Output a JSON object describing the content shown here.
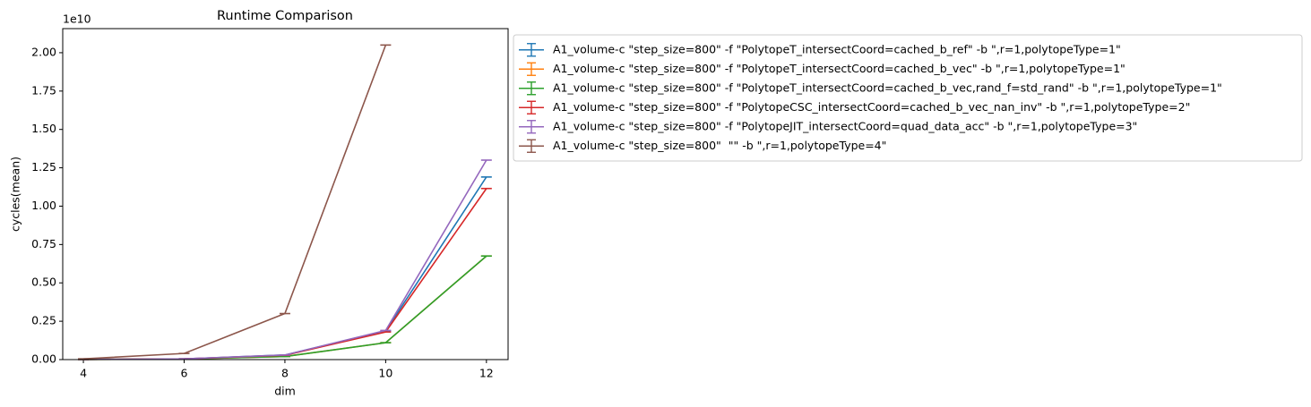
{
  "chart_data": {
    "type": "line",
    "title": "Runtime Comparison",
    "x_label": "dim",
    "y_label": "cycles(mean)",
    "y_offset_label": "1e10",
    "x": [
      4,
      6,
      8,
      10,
      12
    ],
    "series": [
      {
        "name": "A1_volume-c \"step_size=800\" -f \"PolytopeT_intersectCoord=cached_b_ref\" -b \",r=1,polytopeType=1\"",
        "color": "#1f77b4",
        "values": [
          0.001,
          0.005,
          0.03,
          0.187,
          1.19
        ]
      },
      {
        "name": "A1_volume-c \"step_size=800\" -f \"PolytopeT_intersectCoord=cached_b_vec\" -b \",r=1,polytopeType=1\"",
        "color": "#ff7f0e",
        "values": [
          0.001,
          0.004,
          0.02,
          0.11,
          0.675
        ]
      },
      {
        "name": "A1_volume-c \"step_size=800\" -f \"PolytopeT_intersectCoord=cached_b_vec,rand_f=std_rand\" -b \",r=1,polytopeType=1\"",
        "color": "#2ca02c",
        "values": [
          0.001,
          0.004,
          0.02,
          0.11,
          0.675
        ]
      },
      {
        "name": "A1_volume-c \"step_size=800\" -f \"PolytopeCSC_intersectCoord=cached_b_vec_nan_inv\" -b \",r=1,polytopeType=2\"",
        "color": "#d62728",
        "values": [
          0.001,
          0.005,
          0.028,
          0.18,
          1.115
        ]
      },
      {
        "name": "A1_volume-c \"step_size=800\" -f \"PolytopeJIT_intersectCoord=quad_data_acc\" -b \",r=1,polytopeType=3\"",
        "color": "#9467bd",
        "values": [
          0.001,
          0.005,
          0.03,
          0.19,
          1.3
        ]
      },
      {
        "name": "A1_volume-c \"step_size=800\"  \"\" -b \",r=1,polytopeType=4\"",
        "color": "#8c564b",
        "values": [
          0.005,
          0.04,
          0.3,
          2.05,
          null
        ]
      }
    ],
    "xlim": [
      3.59,
      12.43
    ],
    "xticks": [
      4,
      6,
      8,
      10,
      12
    ],
    "ylim": [
      0,
      2.157
    ],
    "yticks": [
      {
        "value": 0,
        "label": "0.00"
      },
      0.25,
      {
        "value": 0.5,
        "label": "0.50"
      },
      0.75,
      {
        "value": 1,
        "label": "1.00"
      },
      1.25,
      {
        "value": 1.5,
        "label": "1.50"
      },
      1.75,
      {
        "value": 2,
        "label": "2.00"
      }
    ],
    "grid": false,
    "legend": "outside upper right"
  }
}
